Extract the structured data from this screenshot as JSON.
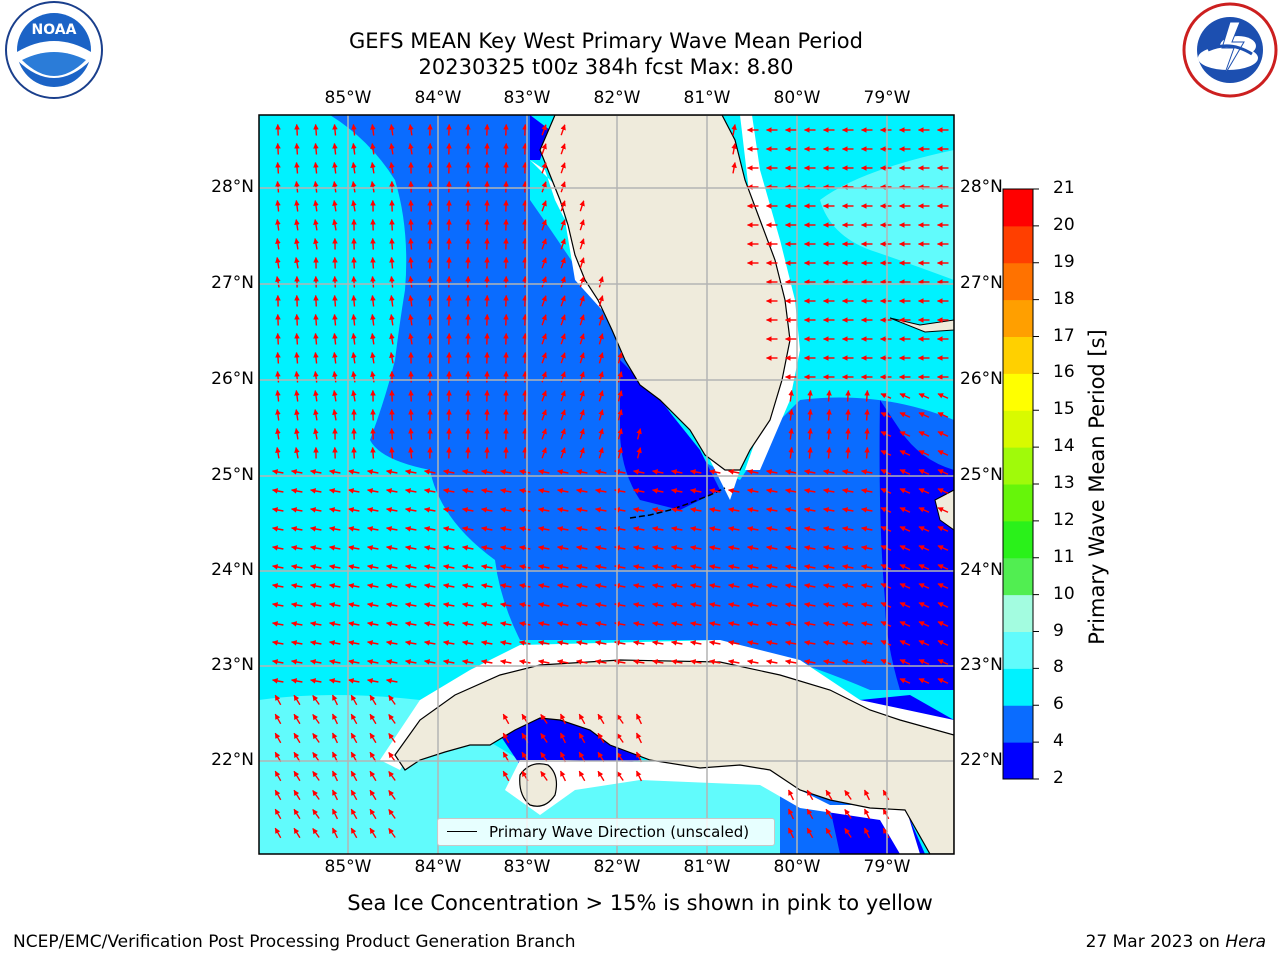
{
  "title": {
    "line1": "GEFS MEAN Key West Primary Wave Mean Period",
    "line2": "20230325 t00z 384h fcst   Max: 8.80"
  },
  "logos": {
    "left": {
      "name": "noaa-logo",
      "text": "NOAA",
      "ring_text": "NATIONAL OCEANIC AND ATMOSPHERIC ADMINISTRATION · U.S. DEPARTMENT OF COMMERCE"
    },
    "right": {
      "name": "nws-logo",
      "ring_text": "NATIONAL WEATHER SERVICE"
    }
  },
  "map": {
    "lon_labels": [
      "85°W",
      "84°W",
      "83°W",
      "82°W",
      "81°W",
      "80°W",
      "79°W"
    ],
    "lat_labels": [
      "28°N",
      "27°N",
      "26°N",
      "25°N",
      "24°N",
      "23°N",
      "22°N"
    ],
    "legend": "Primary Wave Direction (unscaled)",
    "arrow_color": "#ff0000",
    "land_color": "#efebdc",
    "gridline_color": "#b4b4b4"
  },
  "colorbar": {
    "title": "Primary Wave Mean Period [s]",
    "ticks": [
      "21",
      "20",
      "19",
      "18",
      "17",
      "16",
      "15",
      "14",
      "13",
      "12",
      "11",
      "10",
      "9",
      "8",
      "6",
      "4",
      "2"
    ],
    "bins": [
      {
        "from": 2,
        "to": 4,
        "color": "#0000ff"
      },
      {
        "from": 4,
        "to": 6,
        "color": "#0a6cff"
      },
      {
        "from": 6,
        "to": 8,
        "color": "#00f2ff"
      },
      {
        "from": 8,
        "to": 9,
        "color": "#61fbfc"
      },
      {
        "from": 9,
        "to": 10,
        "color": "#a3fce0"
      },
      {
        "from": 10,
        "to": 11,
        "color": "#51ee51"
      },
      {
        "from": 11,
        "to": 12,
        "color": "#2af11a"
      },
      {
        "from": 12,
        "to": 13,
        "color": "#66f50a"
      },
      {
        "from": 13,
        "to": 14,
        "color": "#a0fa0a"
      },
      {
        "from": 14,
        "to": 15,
        "color": "#d8fa00"
      },
      {
        "from": 15,
        "to": 16,
        "color": "#ffff00"
      },
      {
        "from": 16,
        "to": 17,
        "color": "#ffd000"
      },
      {
        "from": 17,
        "to": 18,
        "color": "#ff9f00"
      },
      {
        "from": 18,
        "to": 19,
        "color": "#ff7200"
      },
      {
        "from": 19,
        "to": 20,
        "color": "#ff3f00"
      },
      {
        "from": 20,
        "to": 21,
        "color": "#ff0000"
      }
    ]
  },
  "subtitle": "Sea Ice Concentration > 15% is shown in pink to yellow",
  "footer": {
    "left": "NCEP/EMC/Verification Post Processing Product Generation Branch",
    "right_date": "27 Mar 2023 on ",
    "right_host": "Hera"
  }
}
